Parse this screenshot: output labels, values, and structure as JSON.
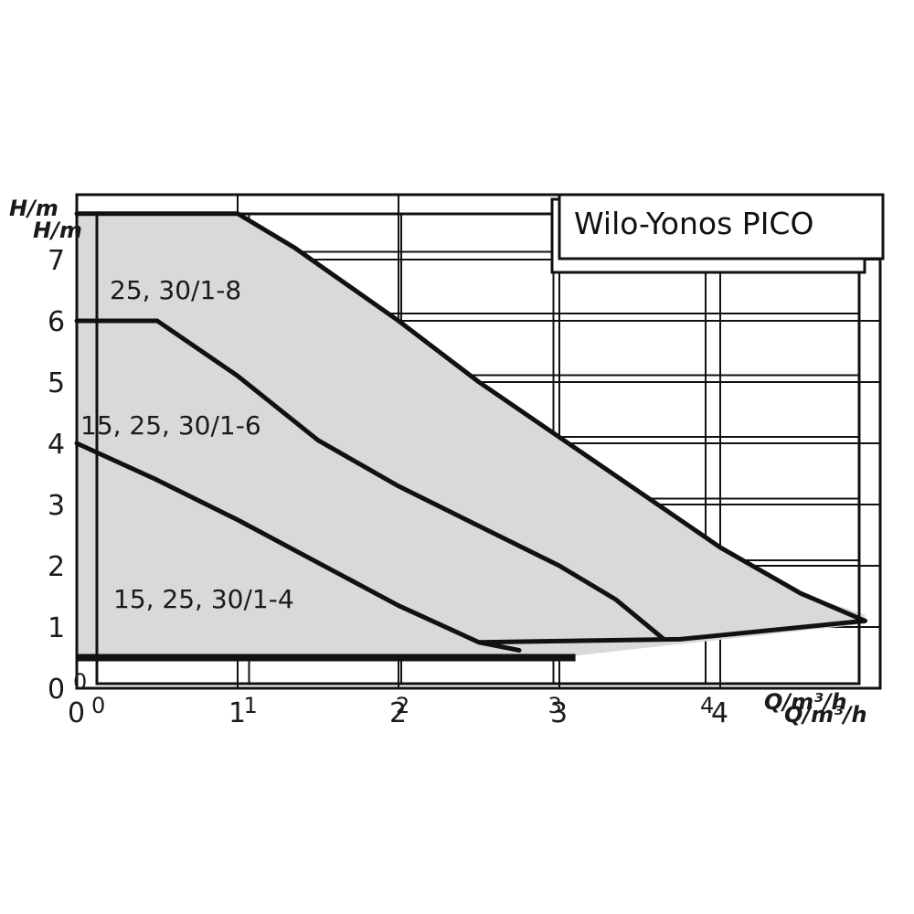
{
  "chart_data": {
    "type": "line",
    "title": "Wilo-Yonos PICO",
    "xlabel": "Q/m³/h",
    "ylabel": "H/m",
    "xlim": [
      0,
      5
    ],
    "ylim": [
      0,
      7.5
    ],
    "x_ticks": [
      "0",
      "1",
      "2",
      "3",
      "4"
    ],
    "y_ticks": [
      "0",
      "1",
      "2",
      "3",
      "4",
      "5",
      "6",
      "7"
    ],
    "grid": true,
    "envelope": {
      "fill": "#d9d9d9",
      "points": [
        [
          0,
          7.75
        ],
        [
          1,
          7.75
        ],
        [
          1.35,
          7.2
        ],
        [
          2,
          6.0
        ],
        [
          2.5,
          5.0
        ],
        [
          3,
          4.1
        ],
        [
          3.5,
          3.2
        ],
        [
          4,
          2.3
        ],
        [
          4.5,
          1.55
        ],
        [
          4.9,
          1.2
        ],
        [
          4.9,
          1.05
        ],
        [
          4.2,
          0.85
        ],
        [
          3.5,
          0.65
        ],
        [
          3,
          0.5
        ],
        [
          0,
          0.5
        ]
      ]
    },
    "series": [
      {
        "name": "25, 30/1-8",
        "points": [
          [
            0,
            7.75
          ],
          [
            1,
            7.75
          ],
          [
            1.35,
            7.2
          ],
          [
            2,
            6.0
          ],
          [
            2.5,
            5.0
          ],
          [
            3,
            4.1
          ],
          [
            3.5,
            3.2
          ],
          [
            4,
            2.3
          ],
          [
            4.5,
            1.55
          ],
          [
            4.9,
            1.1
          ]
        ]
      },
      {
        "name": "15, 25, 30/1-6",
        "points": [
          [
            0,
            6.0
          ],
          [
            0.5,
            6.0
          ],
          [
            1,
            5.1
          ],
          [
            1.5,
            4.05
          ],
          [
            2,
            3.3
          ],
          [
            2.5,
            2.65
          ],
          [
            3,
            2.0
          ],
          [
            3.35,
            1.45
          ],
          [
            3.65,
            0.8
          ]
        ]
      },
      {
        "name": "15, 25, 30/1-4",
        "points": [
          [
            0,
            4.0
          ],
          [
            0.5,
            3.4
          ],
          [
            1,
            2.75
          ],
          [
            1.5,
            2.05
          ],
          [
            2,
            1.35
          ],
          [
            2.5,
            0.75
          ],
          [
            2.75,
            0.62
          ]
        ]
      },
      {
        "name": "",
        "points": [
          [
            2.5,
            0.75
          ],
          [
            3.75,
            0.8
          ],
          [
            4.9,
            1.1
          ]
        ]
      }
    ],
    "curve_labels": [
      "25, 30/1-8",
      "15, 25, 30/1-6",
      "15, 25, 30/1-4"
    ],
    "colors": {
      "curve": "#111111",
      "fill": "#d9d9d9",
      "grid": "#111111",
      "background": "#ffffff"
    }
  }
}
